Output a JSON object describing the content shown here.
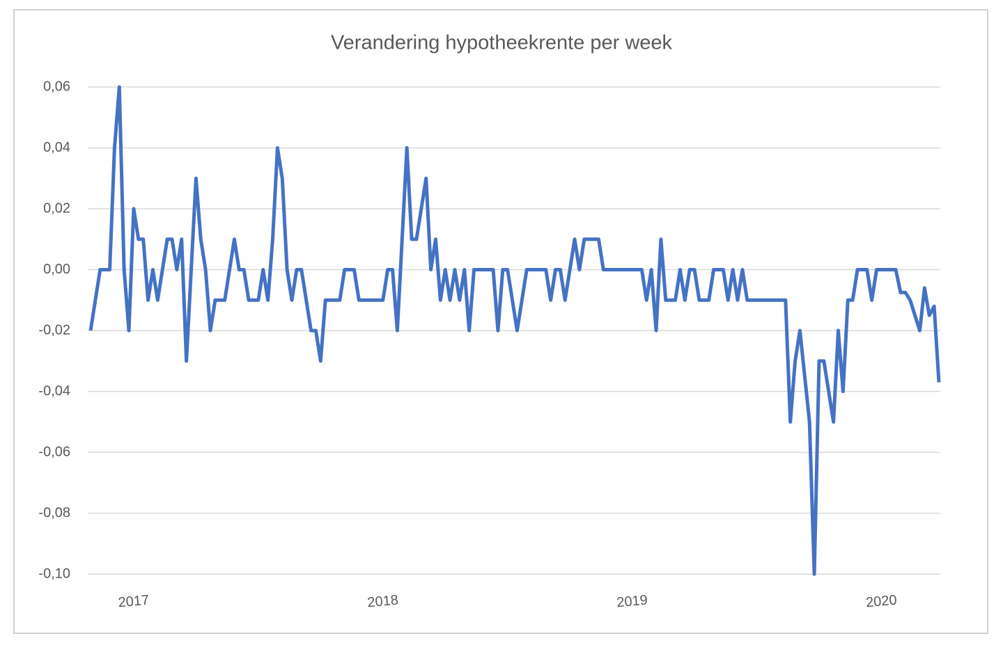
{
  "chart_data": {
    "type": "line",
    "title": "Verandering hypotheekrente per week",
    "categories": [
      null,
      null,
      null,
      null,
      null,
      null,
      null,
      null,
      null,
      "2017",
      null,
      null,
      null,
      null,
      null,
      null,
      null,
      null,
      null,
      null,
      null,
      null,
      null,
      null,
      null,
      null,
      null,
      null,
      null,
      null,
      null,
      null,
      null,
      null,
      null,
      null,
      null,
      null,
      null,
      null,
      null,
      null,
      null,
      null,
      null,
      null,
      null,
      null,
      null,
      null,
      null,
      null,
      null,
      null,
      null,
      null,
      null,
      null,
      null,
      null,
      null,
      "2018",
      null,
      null,
      null,
      null,
      null,
      null,
      null,
      null,
      null,
      null,
      null,
      null,
      null,
      null,
      null,
      null,
      null,
      null,
      null,
      null,
      null,
      null,
      null,
      null,
      null,
      null,
      null,
      null,
      null,
      null,
      null,
      null,
      null,
      null,
      null,
      null,
      null,
      null,
      null,
      null,
      null,
      null,
      null,
      null,
      null,
      null,
      null,
      null,
      null,
      null,
      null,
      "2019",
      null,
      null,
      null,
      null,
      null,
      null,
      null,
      null,
      null,
      null,
      null,
      null,
      null,
      null,
      null,
      null,
      null,
      null,
      null,
      null,
      null,
      null,
      null,
      null,
      null,
      null,
      null,
      null,
      null,
      null,
      null,
      null,
      null,
      null,
      null,
      null,
      null,
      null,
      null,
      null,
      null,
      null,
      null,
      null,
      null,
      null,
      null,
      null,
      null,
      null,
      null,
      "2020",
      null,
      null,
      null,
      null,
      null,
      null,
      null,
      null,
      null,
      null,
      null,
      null
    ],
    "series": [
      {
        "color": "#4472c4",
        "values": [
          -0.02,
          -0.01,
          0,
          0,
          0,
          0.04,
          0.06,
          0,
          -0.02,
          0.02,
          0.01,
          0.01,
          -0.01,
          0,
          -0.01,
          0,
          0.01,
          0.01,
          0,
          0.01,
          -0.03,
          0,
          0.03,
          0.01,
          0,
          -0.02,
          -0.01,
          -0.01,
          -0.01,
          0,
          0.01,
          0,
          0,
          -0.01,
          -0.01,
          -0.01,
          0,
          -0.01,
          0.01,
          0.04,
          0.03,
          0,
          -0.01,
          0,
          0,
          -0.01,
          -0.02,
          -0.02,
          -0.03,
          -0.01,
          -0.01,
          -0.01,
          -0.01,
          0,
          0,
          0,
          -0.01,
          -0.01,
          -0.01,
          -0.01,
          -0.01,
          -0.01,
          0,
          0,
          -0.02,
          0.01,
          0.04,
          0.01,
          0.01,
          0.02,
          0.03,
          0,
          0.01,
          -0.01,
          0,
          -0.01,
          0,
          -0.01,
          0,
          -0.02,
          0,
          0,
          0,
          0,
          0,
          -0.02,
          0,
          0,
          -0.01,
          -0.02,
          -0.01,
          0,
          0,
          0,
          0,
          0,
          -0.01,
          0,
          0,
          -0.01,
          0,
          0.01,
          0,
          0.01,
          0.01,
          0.01,
          0.01,
          0,
          0,
          0,
          0,
          0,
          0,
          0,
          0,
          0,
          -0.01,
          0,
          -0.02,
          0.01,
          -0.01,
          -0.01,
          -0.01,
          0,
          -0.01,
          0,
          0,
          -0.01,
          -0.01,
          -0.01,
          0,
          0,
          0,
          -0.01,
          0,
          -0.01,
          0,
          -0.01,
          -0.01,
          -0.01,
          -0.01,
          -0.01,
          -0.01,
          -0.01,
          -0.01,
          -0.01,
          -0.05,
          -0.03,
          -0.02,
          -0.035,
          -0.05,
          -0.1,
          -0.03,
          -0.03,
          -0.04,
          -0.05,
          -0.02,
          -0.04,
          -0.01,
          -0.01,
          0,
          0,
          0,
          -0.01,
          0,
          0,
          0,
          0,
          0,
          -0.0075,
          -0.0075,
          -0.01,
          -0.015,
          -0.02,
          -0.006,
          -0.015,
          -0.012,
          -0.037
        ]
      }
    ],
    "ylim": [
      -0.1,
      0.06
    ],
    "yticks": [
      {
        "value": 0.06,
        "label": "0,06"
      },
      {
        "value": 0.04,
        "label": "0,04"
      },
      {
        "value": 0.02,
        "label": "0,02"
      },
      {
        "value": 0,
        "label": "0,00"
      },
      {
        "value": -0.02,
        "label": "-0,02"
      },
      {
        "value": -0.04,
        "label": "-0,04"
      },
      {
        "value": -0.06,
        "label": "-0,06"
      },
      {
        "value": -0.08,
        "label": "-0,08"
      },
      {
        "value": -0.1,
        "label": "-0,10"
      }
    ],
    "grid": true
  }
}
